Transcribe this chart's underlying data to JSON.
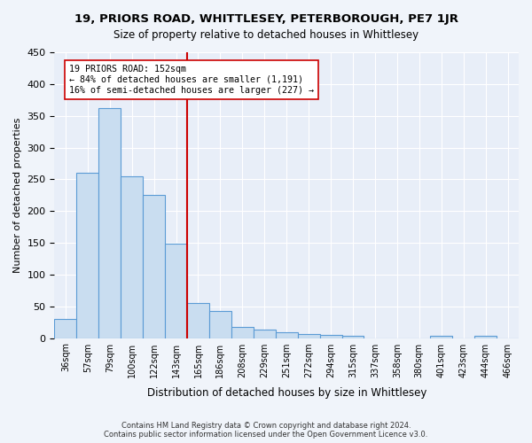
{
  "title": "19, PRIORS ROAD, WHITTLESEY, PETERBOROUGH, PE7 1JR",
  "subtitle": "Size of property relative to detached houses in Whittlesey",
  "xlabel": "Distribution of detached houses by size in Whittlesey",
  "ylabel": "Number of detached properties",
  "footer": "Contains HM Land Registry data © Crown copyright and database right 2024.\nContains public sector information licensed under the Open Government Licence v3.0.",
  "bins": [
    "36sqm",
    "57sqm",
    "79sqm",
    "100sqm",
    "122sqm",
    "143sqm",
    "165sqm",
    "186sqm",
    "208sqm",
    "229sqm",
    "251sqm",
    "272sqm",
    "294sqm",
    "315sqm",
    "337sqm",
    "358sqm",
    "380sqm",
    "401sqm",
    "423sqm",
    "444sqm",
    "466sqm"
  ],
  "values": [
    30,
    260,
    362,
    255,
    225,
    148,
    55,
    43,
    17,
    13,
    9,
    6,
    5,
    3,
    0,
    0,
    0,
    3,
    0,
    3,
    0
  ],
  "bar_color": "#c9ddf0",
  "bar_edge_color": "#5b9bd5",
  "vline_x": 5.5,
  "vline_color": "#cc0000",
  "annotation_line1": "19 PRIORS ROAD: 152sqm",
  "annotation_line2": "← 84% of detached houses are smaller (1,191)",
  "annotation_line3": "16% of semi-detached houses are larger (227) →",
  "annotation_box_color": "#ffffff",
  "annotation_box_edge": "#cc0000",
  "ylim": [
    0,
    450
  ],
  "yticks": [
    0,
    50,
    100,
    150,
    200,
    250,
    300,
    350,
    400,
    450
  ],
  "background_color": "#f0f4fa",
  "plot_background": "#e8eef8"
}
